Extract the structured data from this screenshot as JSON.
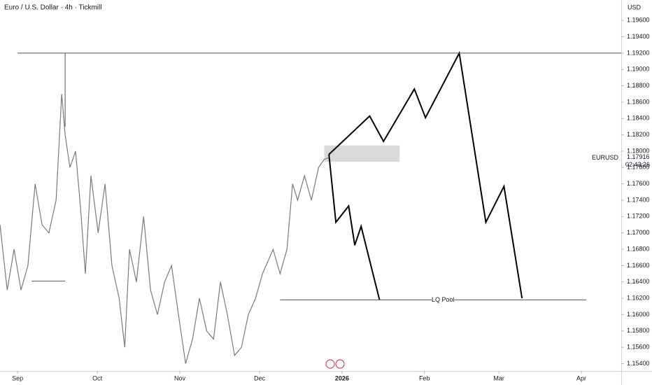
{
  "chart_data": {
    "type": "line",
    "title": "Euro / U.S. Dollar · 4h · Tickmill",
    "y_axis_label": "USD",
    "xlim": [
      -6.6,
      227
    ],
    "ylim": [
      1.1531,
      1.1985
    ],
    "xticks": [
      {
        "value": 0,
        "label": "Sep"
      },
      {
        "value": 30,
        "label": "Oct"
      },
      {
        "value": 61,
        "label": "Nov"
      },
      {
        "value": 91,
        "label": "Dec"
      },
      {
        "value": 122,
        "label": "2026"
      },
      {
        "value": 153,
        "label": "Feb"
      },
      {
        "value": 181,
        "label": "Mar"
      },
      {
        "value": 212,
        "label": "Apr"
      }
    ],
    "yticks": [
      {
        "value": 1.154,
        "label": "1.15400"
      },
      {
        "value": 1.156,
        "label": "1.15600"
      },
      {
        "value": 1.158,
        "label": "1.15800"
      },
      {
        "value": 1.16,
        "label": "1.16000"
      },
      {
        "value": 1.162,
        "label": "1.16200"
      },
      {
        "value": 1.164,
        "label": "1.16400"
      },
      {
        "value": 1.166,
        "label": "1.16600"
      },
      {
        "value": 1.168,
        "label": "1.16800"
      },
      {
        "value": 1.17,
        "label": "1.17000"
      },
      {
        "value": 1.172,
        "label": "1.17200"
      },
      {
        "value": 1.174,
        "label": "1.17400"
      },
      {
        "value": 1.176,
        "label": "1.17600"
      },
      {
        "value": 1.178,
        "label": "1.17800"
      },
      {
        "value": 1.18,
        "label": "1.18000"
      },
      {
        "value": 1.182,
        "label": "1.18200"
      },
      {
        "value": 1.184,
        "label": "1.18400"
      },
      {
        "value": 1.186,
        "label": "1.18600"
      },
      {
        "value": 1.188,
        "label": "1.18800"
      },
      {
        "value": 1.19,
        "label": "1.19000"
      },
      {
        "value": 1.192,
        "label": "1.19200"
      },
      {
        "value": 1.194,
        "label": "1.19400"
      },
      {
        "value": 1.196,
        "label": "1.19600"
      }
    ],
    "series": [
      {
        "color": "#7a7a7a",
        "x": [
          -6.6,
          -3.9,
          -1.3,
          1.3,
          3.9,
          6.6,
          9.2,
          11.8,
          14.5,
          16.6,
          17.9,
          19.7,
          21.8,
          23.7,
          25.5,
          27.6,
          30.3,
          32.9,
          35.5,
          38.2,
          40.3,
          42.1,
          44.7,
          47.4,
          50,
          52.6,
          55.3,
          57.9,
          60.5,
          63.2,
          65.8,
          68.4,
          71.1,
          73.7,
          76.3,
          78.9,
          81.6,
          84.2,
          86.8,
          89.5,
          92.1,
          96.1,
          98.7,
          101.3,
          103.4,
          105.3,
          107.9,
          110.5,
          113.2,
          115.3,
          117.1
        ],
        "values": [
          1.171,
          1.163,
          1.168,
          1.163,
          1.166,
          1.176,
          1.171,
          1.17,
          1.174,
          1.187,
          1.182,
          1.178,
          1.18,
          1.173,
          1.165,
          1.177,
          1.17,
          1.176,
          1.166,
          1.162,
          1.156,
          1.168,
          1.164,
          1.172,
          1.163,
          1.16,
          1.164,
          1.166,
          1.16,
          1.154,
          1.157,
          1.162,
          1.158,
          1.157,
          1.164,
          1.16,
          1.155,
          1.156,
          1.16,
          1.162,
          1.165,
          1.168,
          1.165,
          1.168,
          1.176,
          1.174,
          1.177,
          1.174,
          1.178,
          1.179,
          1.1792
        ]
      },
      {
        "color": "#000000",
        "x": [
          117.1,
          119.7,
          124.5,
          126.8,
          129.2,
          136.1
        ],
        "values": [
          1.1796,
          1.1713,
          1.1733,
          1.1685,
          1.1708,
          1.1618
        ]
      },
      {
        "color": "#000000",
        "x": [
          117.1,
          132.4,
          137.6,
          149.2,
          153.4,
          166.1,
          176.1,
          182.9,
          189.7
        ],
        "values": [
          1.1796,
          1.1843,
          1.1812,
          1.1876,
          1.1841,
          1.192,
          1.1713,
          1.1757,
          1.162
        ]
      },
      {
        "color": "#555555",
        "x": [
          0,
          227
        ],
        "values": [
          1.192,
          1.192
        ]
      },
      {
        "color": "#555555",
        "x": [
          98.7,
          213.9
        ],
        "values": [
          1.1618,
          1.1618
        ]
      },
      {
        "color": "#555555",
        "x": [
          5.3,
          17.9
        ],
        "values": [
          1.1641,
          1.1641
        ]
      },
      {
        "color": "#555555",
        "x": [
          17.9,
          17.9
        ],
        "values": [
          1.192,
          1.183
        ]
      }
    ],
    "zone": {
      "color": "#d9d9d9",
      "x": [
        115.3,
        143.7
      ],
      "y": [
        1.1787,
        1.1807
      ]
    },
    "annotations": [
      {
        "text": "LQ Pool",
        "x": 160,
        "y": 1.1618
      }
    ],
    "last_price": {
      "symbol": "EURUSD",
      "value": 1.17916,
      "time": "02:43:26"
    }
  }
}
